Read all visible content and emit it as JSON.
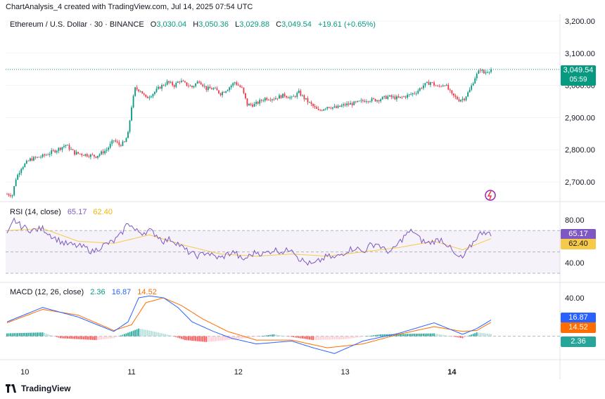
{
  "header": {
    "credit": "ChartAnalysis_4 created with TradingView.com, Jul 14, 2025 07:54 UTC"
  },
  "price_legend": {
    "symbol": "Ethereum / U.S. Dollar · 30 · BINANCE",
    "o_label": "O",
    "o": "3,030.04",
    "h_label": "H",
    "h": "3,050.36",
    "l_label": "L",
    "l": "3,029.88",
    "c_label": "C",
    "c": "3,049.54",
    "change": "+19.61 (+0.65%)"
  },
  "price_tag": {
    "price": "3,049.54",
    "countdown": "05:59"
  },
  "rsi_legend": {
    "label": "RSI (14, close)",
    "rsi": "65.17",
    "ma": "62.40"
  },
  "rsi_tags": {
    "rsi": "65.17",
    "ma": "62.40"
  },
  "macd_legend": {
    "label": "MACD (12, 26, close)",
    "hist": "2.36",
    "macd": "16.87",
    "signal": "14.52"
  },
  "macd_tags": {
    "macd": "16.87",
    "signal": "14.52",
    "hist": "2.36"
  },
  "footer": {
    "brand": "TradingView"
  },
  "colors": {
    "up": "#089981",
    "down": "#f23645",
    "rsi": "#7e57c2",
    "rsi_ma": "#f7c948",
    "macd": "#2962ff",
    "signal": "#ff6d00",
    "price_tag": "#089981"
  },
  "chart_data": [
    {
      "type": "candlestick",
      "title": "Ethereum / U.S. Dollar · 30 · BINANCE",
      "x_ticks": [
        "10",
        "11",
        "12",
        "13",
        "14"
      ],
      "y_ticks": [
        "2,700.00",
        "2,800.00",
        "2,900.00",
        "3,000.00",
        "3,100.00",
        "3,200.00"
      ],
      "ylim": [
        2660,
        3220
      ],
      "close_path_keypoints": [
        [
          0,
          2662
        ],
        [
          3,
          2660
        ],
        [
          5,
          2710
        ],
        [
          8,
          2745
        ],
        [
          13,
          2770
        ],
        [
          20,
          2780
        ],
        [
          28,
          2800
        ],
        [
          33,
          2815
        ],
        [
          38,
          2790
        ],
        [
          44,
          2785
        ],
        [
          50,
          2780
        ],
        [
          56,
          2800
        ],
        [
          60,
          2830
        ],
        [
          63,
          2815
        ],
        [
          66,
          2822
        ],
        [
          68,
          2850
        ],
        [
          70,
          2935
        ],
        [
          72,
          2990
        ],
        [
          75,
          2985
        ],
        [
          78,
          2960
        ],
        [
          82,
          2975
        ],
        [
          86,
          2995
        ],
        [
          90,
          3010
        ],
        [
          94,
          3000
        ],
        [
          97,
          3015
        ],
        [
          100,
          3005
        ],
        [
          104,
          2995
        ],
        [
          108,
          3015
        ],
        [
          112,
          2990
        ],
        [
          116,
          2990
        ],
        [
          120,
          2975
        ],
        [
          124,
          2990
        ],
        [
          128,
          3010
        ],
        [
          132,
          2990
        ],
        [
          135,
          2940
        ],
        [
          139,
          2940
        ],
        [
          145,
          2960
        ],
        [
          150,
          2960
        ],
        [
          156,
          2970
        ],
        [
          160,
          2960
        ],
        [
          164,
          2978
        ],
        [
          167,
          2960
        ],
        [
          171,
          2940
        ],
        [
          175,
          2920
        ],
        [
          180,
          2935
        ],
        [
          185,
          2930
        ],
        [
          190,
          2940
        ],
        [
          196,
          2945
        ],
        [
          202,
          2955
        ],
        [
          208,
          2955
        ],
        [
          214,
          2965
        ],
        [
          220,
          2960
        ],
        [
          226,
          2970
        ],
        [
          230,
          2980
        ],
        [
          234,
          3000
        ],
        [
          238,
          3010
        ],
        [
          242,
          2995
        ],
        [
          246,
          3005
        ],
        [
          250,
          2970
        ],
        [
          254,
          2955
        ],
        [
          257,
          2960
        ],
        [
          260,
          2985
        ],
        [
          263,
          3025
        ],
        [
          266,
          3050
        ],
        [
          268,
          3038
        ],
        [
          270,
          3045
        ],
        [
          272,
          3049.54
        ]
      ],
      "last_close": 3049.54
    },
    {
      "type": "line",
      "title": "RSI (14, close)",
      "y_ticks": [
        "40.00",
        "80.00"
      ],
      "band": [
        30,
        70
      ],
      "ylim": [
        28,
        82
      ],
      "series": [
        {
          "name": "RSI",
          "keypoints": [
            [
              0,
              65
            ],
            [
              4,
              80
            ],
            [
              8,
              74
            ],
            [
              14,
              70
            ],
            [
              20,
              72
            ],
            [
              26,
              64
            ],
            [
              32,
              58
            ],
            [
              38,
              56
            ],
            [
              44,
              54
            ],
            [
              48,
              50
            ],
            [
              54,
              56
            ],
            [
              60,
              60
            ],
            [
              64,
              66
            ],
            [
              68,
              78
            ],
            [
              72,
              70
            ],
            [
              76,
              68
            ],
            [
              80,
              70
            ],
            [
              84,
              66
            ],
            [
              88,
              60
            ],
            [
              92,
              62
            ],
            [
              96,
              58
            ],
            [
              100,
              52
            ],
            [
              104,
              48
            ],
            [
              108,
              46
            ],
            [
              112,
              50
            ],
            [
              116,
              46
            ],
            [
              120,
              44
            ],
            [
              124,
              48
            ],
            [
              128,
              50
            ],
            [
              132,
              42
            ],
            [
              136,
              46
            ],
            [
              140,
              50
            ],
            [
              144,
              48
            ],
            [
              150,
              52
            ],
            [
              156,
              50
            ],
            [
              160,
              54
            ],
            [
              164,
              44
            ],
            [
              168,
              40
            ],
            [
              172,
              38
            ],
            [
              176,
              42
            ],
            [
              180,
              46
            ],
            [
              184,
              44
            ],
            [
              188,
              48
            ],
            [
              192,
              52
            ],
            [
              196,
              54
            ],
            [
              200,
              50
            ],
            [
              204,
              56
            ],
            [
              208,
              58
            ],
            [
              212,
              52
            ],
            [
              216,
              50
            ],
            [
              220,
              58
            ],
            [
              224,
              66
            ],
            [
              228,
              70
            ],
            [
              232,
              62
            ],
            [
              236,
              58
            ],
            [
              240,
              60
            ],
            [
              244,
              62
            ],
            [
              248,
              56
            ],
            [
              252,
              46
            ],
            [
              256,
              44
            ],
            [
              260,
              54
            ],
            [
              264,
              64
            ],
            [
              268,
              70
            ],
            [
              272,
              65.17
            ]
          ]
        },
        {
          "name": "RSI MA",
          "keypoints": [
            [
              0,
              70
            ],
            [
              20,
              72
            ],
            [
              40,
              60
            ],
            [
              60,
              58
            ],
            [
              80,
              66
            ],
            [
              100,
              56
            ],
            [
              120,
              48
            ],
            [
              140,
              46
            ],
            [
              160,
              48
            ],
            [
              180,
              46
            ],
            [
              200,
              50
            ],
            [
              220,
              54
            ],
            [
              240,
              60
            ],
            [
              256,
              52
            ],
            [
              272,
              62.4
            ]
          ]
        }
      ]
    },
    {
      "type": "line",
      "title": "MACD (12, 26, close)",
      "y_ticks": [
        "40.00"
      ],
      "ylim": [
        -22,
        48
      ],
      "series": [
        {
          "name": "MACD",
          "keypoints": [
            [
              0,
              15
            ],
            [
              20,
              30
            ],
            [
              40,
              20
            ],
            [
              60,
              5
            ],
            [
              68,
              15
            ],
            [
              74,
              40
            ],
            [
              80,
              42
            ],
            [
              88,
              40
            ],
            [
              96,
              30
            ],
            [
              104,
              15
            ],
            [
              116,
              5
            ],
            [
              126,
              -2
            ],
            [
              140,
              -8
            ],
            [
              160,
              -5
            ],
            [
              172,
              -12
            ],
            [
              184,
              -18
            ],
            [
              200,
              -5
            ],
            [
              220,
              3
            ],
            [
              240,
              14
            ],
            [
              256,
              2
            ],
            [
              264,
              8
            ],
            [
              272,
              16.87
            ]
          ]
        },
        {
          "name": "Signal",
          "keypoints": [
            [
              0,
              14
            ],
            [
              20,
              28
            ],
            [
              40,
              22
            ],
            [
              60,
              6
            ],
            [
              70,
              12
            ],
            [
              78,
              35
            ],
            [
              88,
              40
            ],
            [
              98,
              32
            ],
            [
              110,
              18
            ],
            [
              124,
              5
            ],
            [
              140,
              -4
            ],
            [
              160,
              -4
            ],
            [
              180,
              -12
            ],
            [
              200,
              -8
            ],
            [
              220,
              2
            ],
            [
              240,
              10
            ],
            [
              256,
              5
            ],
            [
              264,
              6
            ],
            [
              272,
              14.52
            ]
          ]
        }
      ],
      "histogram_keypoints": [
        [
          0,
          3
        ],
        [
          20,
          4
        ],
        [
          30,
          -2
        ],
        [
          50,
          -4
        ],
        [
          60,
          -2
        ],
        [
          74,
          8
        ],
        [
          80,
          6
        ],
        [
          92,
          1
        ],
        [
          100,
          -4
        ],
        [
          112,
          -6
        ],
        [
          130,
          -3
        ],
        [
          150,
          2
        ],
        [
          172,
          -4
        ],
        [
          190,
          -3
        ],
        [
          210,
          2
        ],
        [
          240,
          3
        ],
        [
          256,
          -2
        ],
        [
          264,
          4
        ],
        [
          272,
          2.36
        ]
      ]
    }
  ]
}
